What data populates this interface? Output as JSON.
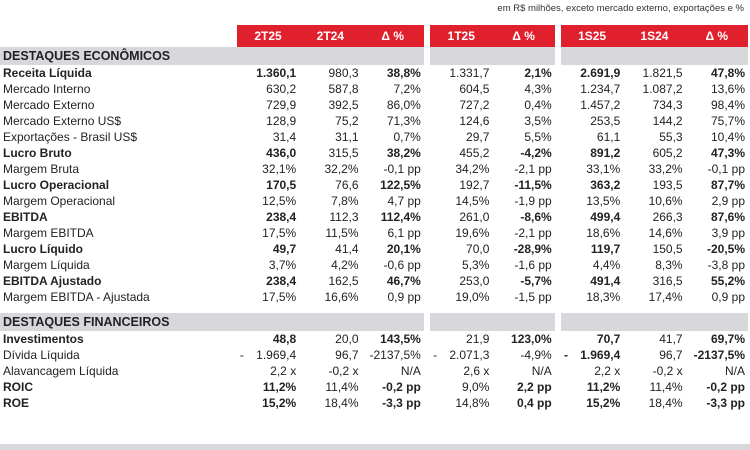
{
  "note": "em R$ milhões, exceto mercado externo, exportações e %",
  "header": [
    "2T25",
    "2T24",
    "Δ %",
    "1T25",
    "Δ %",
    "1S25",
    "1S24",
    "Δ %"
  ],
  "sections": [
    {
      "title": "DESTAQUES ECONÔMICOS",
      "rows": [
        {
          "label": "Receita Líquida",
          "bold": true,
          "v": [
            "1.360,1",
            "980,3",
            "38,8%",
            "1.331,7",
            "2,1%",
            "2.691,9",
            "1.821,5",
            "47,8%"
          ],
          "b": [
            1,
            0,
            1,
            0,
            1,
            1,
            0,
            1
          ]
        },
        {
          "label": "Mercado Interno",
          "bold": false,
          "v": [
            "630,2",
            "587,8",
            "7,2%",
            "604,5",
            "4,3%",
            "1.234,7",
            "1.087,2",
            "13,6%"
          ],
          "b": [
            0,
            0,
            0,
            0,
            0,
            0,
            0,
            0
          ]
        },
        {
          "label": "Mercado Externo",
          "bold": false,
          "v": [
            "729,9",
            "392,5",
            "86,0%",
            "727,2",
            "0,4%",
            "1.457,2",
            "734,3",
            "98,4%"
          ],
          "b": [
            0,
            0,
            0,
            0,
            0,
            0,
            0,
            0
          ]
        },
        {
          "label": "Mercado Externo US$",
          "bold": false,
          "v": [
            "128,9",
            "75,2",
            "71,3%",
            "124,6",
            "3,5%",
            "253,5",
            "144,2",
            "75,7%"
          ],
          "b": [
            0,
            0,
            0,
            0,
            0,
            0,
            0,
            0
          ]
        },
        {
          "label": "Exportações - Brasil US$",
          "bold": false,
          "v": [
            "31,4",
            "31,1",
            "0,7%",
            "29,7",
            "5,5%",
            "61,1",
            "55,3",
            "10,4%"
          ],
          "b": [
            0,
            0,
            0,
            0,
            0,
            0,
            0,
            0
          ]
        },
        {
          "label": "Lucro Bruto",
          "bold": true,
          "v": [
            "436,0",
            "315,5",
            "38,2%",
            "455,2",
            "-4,2%",
            "891,2",
            "605,2",
            "47,3%"
          ],
          "b": [
            1,
            0,
            1,
            0,
            1,
            1,
            0,
            1
          ]
        },
        {
          "label": "Margem Bruta",
          "bold": false,
          "v": [
            "32,1%",
            "32,2%",
            "-0,1 pp",
            "34,2%",
            "-2,1 pp",
            "33,1%",
            "33,2%",
            "-0,1 pp"
          ],
          "b": [
            0,
            0,
            0,
            0,
            0,
            0,
            0,
            0
          ]
        },
        {
          "label": "Lucro Operacional",
          "bold": true,
          "v": [
            "170,5",
            "76,6",
            "122,5%",
            "192,7",
            "-11,5%",
            "363,2",
            "193,5",
            "87,7%"
          ],
          "b": [
            1,
            0,
            1,
            0,
            1,
            1,
            0,
            1
          ]
        },
        {
          "label": "Margem Operacional",
          "bold": false,
          "v": [
            "12,5%",
            "7,8%",
            "4,7 pp",
            "14,5%",
            "-1,9 pp",
            "13,5%",
            "10,6%",
            "2,9 pp"
          ],
          "b": [
            0,
            0,
            0,
            0,
            0,
            0,
            0,
            0
          ]
        },
        {
          "label": "EBITDA",
          "bold": true,
          "v": [
            "238,4",
            "112,3",
            "112,4%",
            "261,0",
            "-8,6%",
            "499,4",
            "266,3",
            "87,6%"
          ],
          "b": [
            1,
            0,
            1,
            0,
            1,
            1,
            0,
            1
          ]
        },
        {
          "label": "Margem EBITDA",
          "bold": false,
          "v": [
            "17,5%",
            "11,5%",
            "6,1 pp",
            "19,6%",
            "-2,1 pp",
            "18,6%",
            "14,6%",
            "3,9 pp"
          ],
          "b": [
            0,
            0,
            0,
            0,
            0,
            0,
            0,
            0
          ]
        },
        {
          "label": "Lucro Líquido",
          "bold": true,
          "v": [
            "49,7",
            "41,4",
            "20,1%",
            "70,0",
            "-28,9%",
            "119,7",
            "150,5",
            "-20,5%"
          ],
          "b": [
            1,
            0,
            1,
            0,
            1,
            1,
            0,
            1
          ]
        },
        {
          "label": "Margem Líquida",
          "bold": false,
          "v": [
            "3,7%",
            "4,2%",
            "-0,6 pp",
            "5,3%",
            "-1,6 pp",
            "4,4%",
            "8,3%",
            "-3,8 pp"
          ],
          "b": [
            0,
            0,
            0,
            0,
            0,
            0,
            0,
            0
          ]
        },
        {
          "label": "EBITDA Ajustado",
          "bold": true,
          "v": [
            "238,4",
            "162,5",
            "46,7%",
            "253,0",
            "-5,7%",
            "491,4",
            "316,5",
            "55,2%"
          ],
          "b": [
            1,
            0,
            1,
            0,
            1,
            1,
            0,
            1
          ]
        },
        {
          "label": "Margem EBITDA - Ajustada",
          "bold": false,
          "v": [
            "17,5%",
            "16,6%",
            "0,9 pp",
            "19,0%",
            "-1,5 pp",
            "18,3%",
            "17,4%",
            "0,9 pp"
          ],
          "b": [
            0,
            0,
            0,
            0,
            0,
            0,
            0,
            0
          ]
        }
      ]
    },
    {
      "title": "DESTAQUES FINANCEIROS",
      "rows": [
        {
          "label": "Investimentos",
          "bold": true,
          "v": [
            "48,8",
            "20,0",
            "143,5%",
            "21,9",
            "123,0%",
            "70,7",
            "41,7",
            "69,7%"
          ],
          "b": [
            1,
            0,
            1,
            0,
            1,
            1,
            0,
            1
          ]
        },
        {
          "label": "Dívida Líquida",
          "bold": false,
          "v": [
            "1.969,4",
            "96,7",
            "-2137,5%",
            "2.071,3",
            "-4,9%",
            "1.969,4",
            "96,7",
            "-2137,5%"
          ],
          "b": [
            0,
            0,
            0,
            0,
            0,
            1,
            0,
            1
          ],
          "neg": [
            1,
            0,
            0,
            1,
            0,
            1,
            0,
            0
          ]
        },
        {
          "label": "Alavancagem Líquida",
          "bold": false,
          "v": [
            "2,2 x",
            "-0,2 x",
            "N/A",
            "2,6 x",
            "N/A",
            "2,2 x",
            "-0,2 x",
            "N/A"
          ],
          "b": [
            0,
            0,
            0,
            0,
            0,
            0,
            0,
            0
          ]
        },
        {
          "label": "ROIC",
          "bold": true,
          "v": [
            "11,2%",
            "11,4%",
            "-0,2 pp",
            "9,0%",
            "2,2 pp",
            "11,2%",
            "11,4%",
            "-0,2 pp"
          ],
          "b": [
            1,
            0,
            1,
            0,
            1,
            1,
            0,
            1
          ]
        },
        {
          "label": "ROE",
          "bold": true,
          "v": [
            "15,2%",
            "18,4%",
            "-3,3 pp",
            "14,8%",
            "0,4 pp",
            "15,2%",
            "18,4%",
            "-3,3 pp"
          ],
          "b": [
            1,
            0,
            1,
            0,
            1,
            1,
            0,
            1
          ]
        }
      ]
    }
  ]
}
